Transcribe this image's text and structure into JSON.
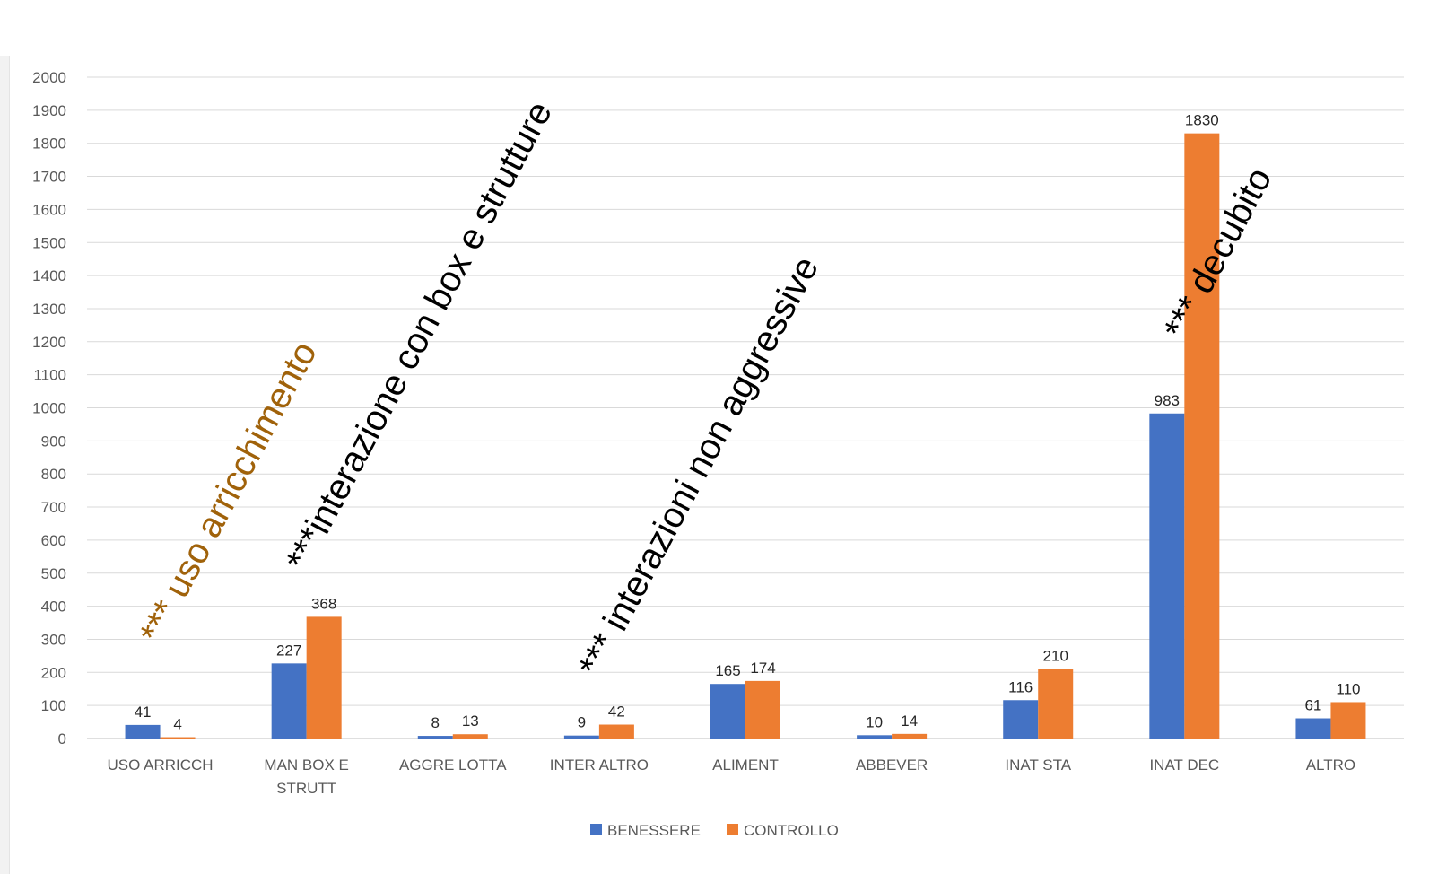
{
  "chart_data": {
    "type": "bar",
    "categories": [
      [
        "USO ARRICCH"
      ],
      [
        "MAN BOX E",
        "STRUTT"
      ],
      [
        "AGGRE LOTTA"
      ],
      [
        "INTER ALTRO"
      ],
      [
        "ALIMENT"
      ],
      [
        "ABBEVER"
      ],
      [
        "INAT STA"
      ],
      [
        "INAT DEC"
      ],
      [
        "ALTRO"
      ]
    ],
    "series": [
      {
        "name": "BENESSERE",
        "color": "#4472c4",
        "values": [
          41,
          227,
          8,
          9,
          165,
          10,
          116,
          983,
          61
        ]
      },
      {
        "name": "CONTROLLO",
        "color": "#ed7d31",
        "values": [
          4,
          368,
          13,
          42,
          174,
          14,
          210,
          1830,
          110
        ]
      }
    ],
    "ylim": [
      0,
      2000
    ],
    "ytick_step": 100,
    "grid": true,
    "legend_position": "bottom",
    "annotations": [
      {
        "text": "*** uso arricchimento",
        "color": "#a0620a",
        "category_index": 0,
        "value": 280
      },
      {
        "text": "***interazione con box e strutture",
        "color": "#000000",
        "category_index": 1,
        "value": 500
      },
      {
        "text": "*** interazioni non aggressive",
        "color": "#000000",
        "category_index": 3,
        "value": 180
      },
      {
        "text": "*** decubito",
        "color": "#000000",
        "category_index": 7,
        "value": 1200
      }
    ]
  }
}
